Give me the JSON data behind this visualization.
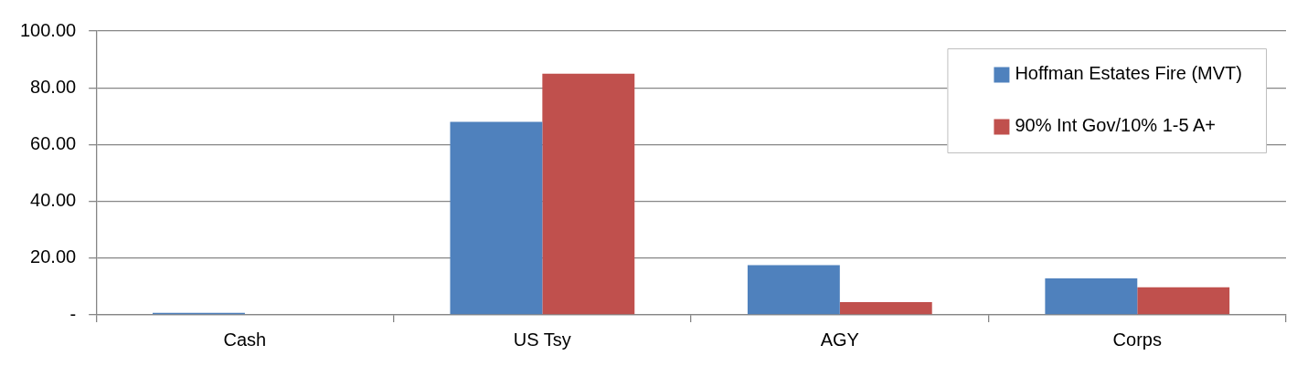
{
  "chart_data": {
    "type": "bar",
    "categories": [
      "Cash",
      "US Tsy",
      "AGY",
      "Corps"
    ],
    "series": [
      {
        "name": "Hoffman Estates Fire (MVT)",
        "color": "#4f81bd",
        "values": [
          0.7,
          68.0,
          17.5,
          12.9
        ]
      },
      {
        "name": "90% Int Gov/10% 1-5 A+",
        "color": "#c0504d",
        "values": [
          0,
          85.0,
          4.5,
          9.7
        ]
      }
    ],
    "ylim": [
      0,
      100
    ],
    "yticks": [
      {
        "value": 0,
        "label": "-"
      },
      {
        "value": 20,
        "label": "20.00"
      },
      {
        "value": 40,
        "label": "40.00"
      },
      {
        "value": 60,
        "label": "60.00"
      },
      {
        "value": 80,
        "label": "80.00"
      },
      {
        "value": 100,
        "label": "100.00"
      }
    ],
    "grid": "y",
    "legend": "top right"
  }
}
